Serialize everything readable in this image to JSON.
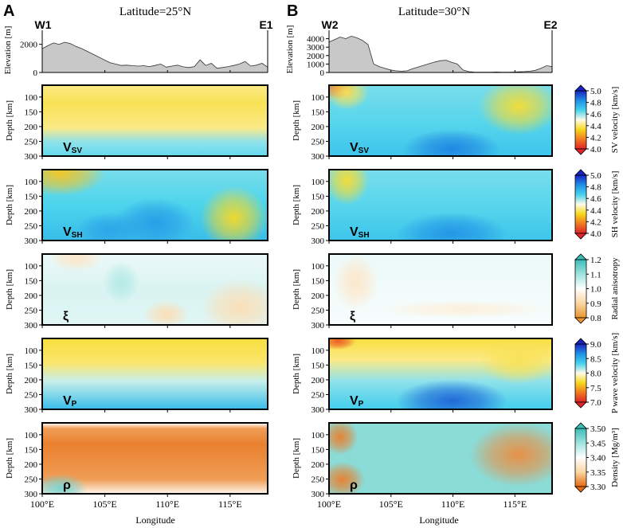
{
  "panel_letters": [
    "A",
    "B"
  ],
  "chart_data": [
    {
      "type": "heatmap",
      "panel": "A",
      "title": "Latitude=25°N",
      "profile_start": "W1",
      "profile_end": "E1",
      "xlabel": "Longitude",
      "xticks": [
        "100°E",
        "105°E",
        "110°E",
        "115°E"
      ],
      "xlim": [
        100,
        118
      ],
      "elevation": {
        "ylabel": "Elevation [m]",
        "yticks": [
          "0",
          "2000"
        ],
        "ylim": [
          0,
          3000
        ],
        "values": [
          1700,
          1900,
          2100,
          2000,
          2150,
          2050,
          1850,
          1700,
          1500,
          1300,
          1100,
          900,
          700,
          600,
          500,
          520,
          480,
          450,
          480,
          420,
          500,
          600,
          380,
          450,
          520,
          400,
          350,
          420,
          900,
          500,
          650,
          300,
          350,
          420,
          500,
          600,
          780,
          450,
          520,
          650,
          380
        ]
      },
      "depth_axis": {
        "ylabel": "Depth [km]",
        "yticks": [
          "100",
          "150",
          "200",
          "250",
          "300"
        ],
        "ylim": [
          60,
          300
        ]
      },
      "rows": [
        {
          "label": "V",
          "sub": "SV",
          "colormap": "velocity",
          "range": [
            4.0,
            5.0
          ]
        },
        {
          "label": "V",
          "sub": "SH",
          "colormap": "velocity",
          "range": [
            4.0,
            5.0
          ]
        },
        {
          "label": "ξ",
          "sub": "",
          "colormap": "anisotropy",
          "range": [
            0.8,
            1.2
          ]
        },
        {
          "label": "V",
          "sub": "P",
          "colormap": "velocity",
          "range": [
            7.0,
            9.0
          ]
        },
        {
          "label": "ρ",
          "sub": "",
          "colormap": "density",
          "range": [
            3.3,
            3.5
          ]
        }
      ]
    },
    {
      "type": "heatmap",
      "panel": "B",
      "title": "Latitude=30°N",
      "profile_start": "W2",
      "profile_end": "E2",
      "xlabel": "Longitude",
      "xticks": [
        "100°E",
        "105°E",
        "110°E",
        "115°E"
      ],
      "xlim": [
        100,
        118
      ],
      "elevation": {
        "ylabel": "Elevation [m]",
        "yticks": [
          "0",
          "1000",
          "2000",
          "3000",
          "4000"
        ],
        "ylim": [
          0,
          5000
        ],
        "values": [
          3600,
          3900,
          4200,
          4000,
          4300,
          4100,
          3800,
          3300,
          1000,
          700,
          500,
          300,
          200,
          150,
          200,
          450,
          650,
          850,
          1050,
          1250,
          1400,
          1450,
          1200,
          1000,
          300,
          100,
          50,
          40,
          30,
          30,
          60,
          40,
          30,
          50,
          80,
          100,
          150,
          250,
          500,
          800,
          700
        ]
      },
      "depth_axis": {
        "ylabel": "Depth [km]",
        "yticks": [
          "100",
          "150",
          "200",
          "250",
          "300"
        ],
        "ylim": [
          60,
          300
        ]
      },
      "rows": [
        {
          "label": "V",
          "sub": "SV",
          "colormap": "velocity",
          "range": [
            4.0,
            5.0
          ]
        },
        {
          "label": "V",
          "sub": "SH",
          "colormap": "velocity",
          "range": [
            4.0,
            5.0
          ]
        },
        {
          "label": "ξ",
          "sub": "",
          "colormap": "anisotropy",
          "range": [
            0.8,
            1.2
          ]
        },
        {
          "label": "V",
          "sub": "P",
          "colormap": "velocity",
          "range": [
            7.0,
            9.0
          ]
        },
        {
          "label": "ρ",
          "sub": "",
          "colormap": "density",
          "range": [
            3.3,
            3.5
          ]
        }
      ]
    }
  ],
  "colorbars": [
    {
      "label": "SV velocity [km/s]",
      "ticks": [
        "4.0",
        "4.2",
        "4.4",
        "4.6",
        "4.8",
        "5.0"
      ],
      "colormap": "velocity"
    },
    {
      "label": "SH velocity [km/s]",
      "ticks": [
        "4.0",
        "4.2",
        "4.4",
        "4.6",
        "4.8",
        "5.0"
      ],
      "colormap": "velocity"
    },
    {
      "label": "Radial anisotropy",
      "ticks": [
        "0.8",
        "0.9",
        "1.0",
        "1.1",
        "1.2"
      ],
      "colormap": "anisotropy"
    },
    {
      "label": "P wave velocity [km/s]",
      "ticks": [
        "7.0",
        "7.5",
        "8.0",
        "8.5",
        "9.0"
      ],
      "colormap": "velocity"
    },
    {
      "label": "Density [Mg/m³]",
      "ticks": [
        "3.30",
        "3.35",
        "3.40",
        "3.45",
        "3.50"
      ],
      "colormap": "density"
    }
  ],
  "colormaps": {
    "velocity": [
      "#e0242a",
      "#f07a1f",
      "#f7d81d",
      "#fffbe9",
      "#45d2ec",
      "#1f8fe6",
      "#1a23c0"
    ],
    "anisotropy": [
      "#e8952e",
      "#fbd6a3",
      "#ffffff",
      "#9fe3df",
      "#3bbcb7"
    ],
    "density": [
      "#e56a11",
      "#fbd6a3",
      "#ffffff",
      "#9fe3df",
      "#3bbcb7"
    ]
  },
  "colors": {
    "elevation_fill": "#c8c8c8",
    "frame": "#000000"
  }
}
